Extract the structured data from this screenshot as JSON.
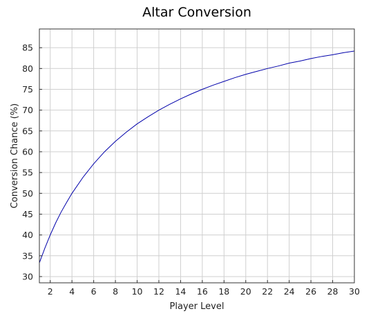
{
  "chart_data": {
    "type": "line",
    "title": "Altar Conversion",
    "xlabel": "Player Level",
    "ylabel": "Conversion Chance (%)",
    "xlim": [
      1,
      30
    ],
    "ylim": [
      28.5,
      89.5
    ],
    "x_ticks": [
      2,
      4,
      6,
      8,
      10,
      12,
      14,
      16,
      18,
      20,
      22,
      24,
      26,
      28,
      30
    ],
    "y_ticks": [
      30,
      35,
      40,
      45,
      50,
      55,
      60,
      65,
      70,
      75,
      80,
      85
    ],
    "grid": true,
    "series": [
      {
        "color": "#0000aa",
        "x": [
          1,
          1.5,
          2,
          2.5,
          3,
          3.5,
          4,
          5,
          6,
          7,
          8,
          9,
          10,
          11,
          12,
          13,
          14,
          15,
          16,
          17,
          18,
          19,
          20,
          21,
          22,
          23,
          24,
          25,
          26,
          27,
          28,
          29,
          30
        ],
        "y": [
          33.3,
          36.8,
          40.0,
          42.9,
          45.5,
          47.8,
          50.0,
          53.8,
          57.1,
          60.0,
          62.5,
          64.7,
          66.7,
          68.4,
          70.0,
          71.4,
          72.7,
          73.9,
          75.0,
          76.0,
          76.9,
          77.8,
          78.6,
          79.3,
          80.0,
          80.6,
          81.3,
          81.8,
          82.4,
          82.9,
          83.3,
          83.8,
          84.2
        ]
      }
    ]
  }
}
